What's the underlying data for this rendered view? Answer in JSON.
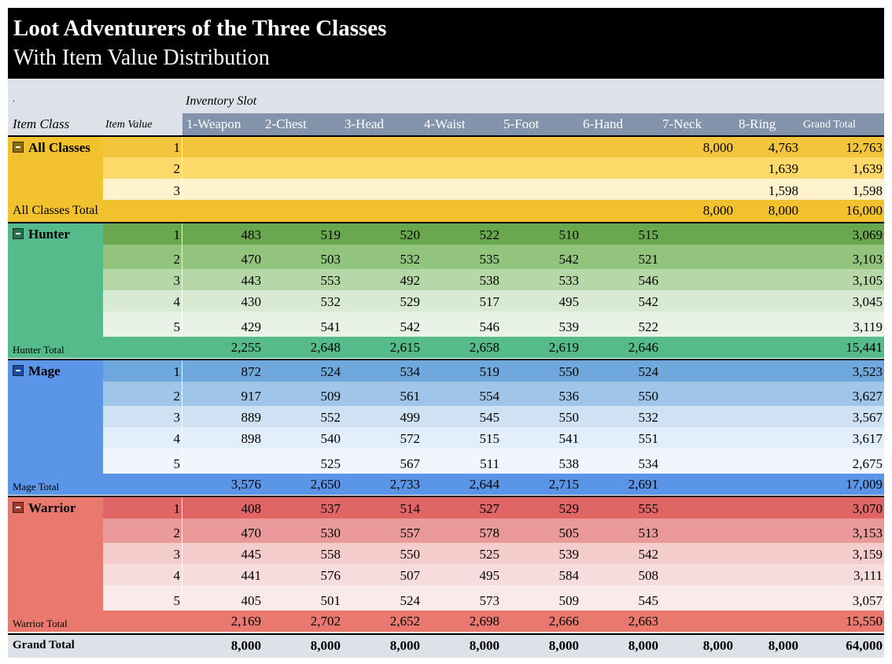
{
  "title": "Loot Adventurers of the Three Classes",
  "subtitle": "With Item Value Distribution",
  "header": {
    "dot": ".",
    "slot_caption": "Inventory Slot",
    "item_class": "Item Class",
    "item_value": "Item Value",
    "columns": [
      "1-Weapon",
      "2-Chest",
      "3-Head",
      "4-Waist",
      "5-Foot",
      "6-Hand",
      "7-Neck",
      "8-Ring",
      "Grand Total"
    ]
  },
  "groups": [
    {
      "name": "All Classes",
      "toggle_color": "#8d6d0e",
      "label_bg": "#f2c12e",
      "total_label": "All Classes Total",
      "rows": [
        {
          "value": "1",
          "cells": [
            "",
            "",
            "",
            "",
            "",
            "",
            "8,000",
            "4,763",
            "12,763"
          ],
          "bg": "#f3c53c"
        },
        {
          "value": "2",
          "cells": [
            "",
            "",
            "",
            "",
            "",
            "",
            "",
            "1,639",
            "1,639"
          ],
          "bg": "#fdd96a"
        },
        {
          "value": "3",
          "cells": [
            "",
            "",
            "",
            "",
            "",
            "",
            "",
            "1,598",
            "1,598"
          ],
          "bg": "#fff3cd"
        }
      ],
      "totals": [
        "",
        "",
        "",
        "",
        "",
        "",
        "8,000",
        "8,000",
        "16,000"
      ],
      "total_bg": "#f2c12e"
    },
    {
      "name": "Hunter",
      "toggle_color": "#2a6e54",
      "label_bg": "#55bb8a",
      "total_label": "Hunter Total",
      "rows": [
        {
          "value": "1",
          "cells": [
            "483",
            "519",
            "520",
            "522",
            "510",
            "515",
            "",
            "",
            "3,069"
          ],
          "bg": "#6aa84f"
        },
        {
          "value": "2",
          "cells": [
            "470",
            "503",
            "532",
            "535",
            "542",
            "521",
            "",
            "",
            "3,103"
          ],
          "bg": "#93c47d"
        },
        {
          "value": "3",
          "cells": [
            "443",
            "553",
            "492",
            "538",
            "533",
            "546",
            "",
            "",
            "3,105"
          ],
          "bg": "#b6d7a8"
        },
        {
          "value": "4",
          "cells": [
            "430",
            "532",
            "529",
            "517",
            "495",
            "542",
            "",
            "",
            "3,045"
          ],
          "bg": "#d9ead3"
        },
        {
          "value": "5",
          "cells": [
            "429",
            "541",
            "542",
            "546",
            "539",
            "522",
            "",
            "",
            "3,119"
          ],
          "bg": "#e9f3e5"
        }
      ],
      "totals": [
        "2,255",
        "2,648",
        "2,615",
        "2,658",
        "2,619",
        "2,646",
        "",
        "",
        "15,441"
      ],
      "total_bg": "#55bb8a"
    },
    {
      "name": "Mage",
      "toggle_color": "#1c4fa0",
      "label_bg": "#5b95e8",
      "total_label": "Mage Total",
      "rows": [
        {
          "value": "1",
          "cells": [
            "872",
            "524",
            "534",
            "519",
            "550",
            "524",
            "",
            "",
            "3,523"
          ],
          "bg": "#6fa8dc"
        },
        {
          "value": "2",
          "cells": [
            "917",
            "509",
            "561",
            "554",
            "536",
            "550",
            "",
            "",
            "3,627"
          ],
          "bg": "#9fc5e8"
        },
        {
          "value": "3",
          "cells": [
            "889",
            "552",
            "499",
            "545",
            "550",
            "532",
            "",
            "",
            "3,567"
          ],
          "bg": "#cfe2f3"
        },
        {
          "value": "4",
          "cells": [
            "898",
            "540",
            "572",
            "515",
            "541",
            "551",
            "",
            "",
            "3,617"
          ],
          "bg": "#e2eef9"
        },
        {
          "value": "5",
          "cells": [
            "",
            "525",
            "567",
            "511",
            "538",
            "534",
            "",
            "",
            "2,675"
          ],
          "bg": "#f0f6fc"
        }
      ],
      "totals": [
        "3,576",
        "2,650",
        "2,733",
        "2,644",
        "2,715",
        "2,691",
        "",
        "",
        "17,009"
      ],
      "total_bg": "#5b95e8"
    },
    {
      "name": "Warrior",
      "toggle_color": "#a33a30",
      "label_bg": "#e9796f",
      "total_label": "Warrior Total",
      "rows": [
        {
          "value": "1",
          "cells": [
            "408",
            "537",
            "514",
            "527",
            "529",
            "555",
            "",
            "",
            "3,070"
          ],
          "bg": "#e06666"
        },
        {
          "value": "2",
          "cells": [
            "470",
            "530",
            "557",
            "578",
            "505",
            "513",
            "",
            "",
            "3,153"
          ],
          "bg": "#ea9999"
        },
        {
          "value": "3",
          "cells": [
            "445",
            "558",
            "550",
            "525",
            "539",
            "542",
            "",
            "",
            "3,159"
          ],
          "bg": "#f4cccc"
        },
        {
          "value": "4",
          "cells": [
            "441",
            "576",
            "507",
            "495",
            "584",
            "508",
            "",
            "",
            "3,111"
          ],
          "bg": "#f7dcdc"
        },
        {
          "value": "5",
          "cells": [
            "405",
            "501",
            "524",
            "573",
            "509",
            "545",
            "",
            "",
            "3,057"
          ],
          "bg": "#fbeaea"
        }
      ],
      "totals": [
        "2,169",
        "2,702",
        "2,652",
        "2,698",
        "2,666",
        "2,663",
        "",
        "",
        "15,550"
      ],
      "total_bg": "#e9796f"
    }
  ],
  "grand_total": {
    "label": "Grand Total",
    "cells": [
      "8,000",
      "8,000",
      "8,000",
      "8,000",
      "8,000",
      "8,000",
      "8,000",
      "8,000",
      "64,000"
    ]
  }
}
